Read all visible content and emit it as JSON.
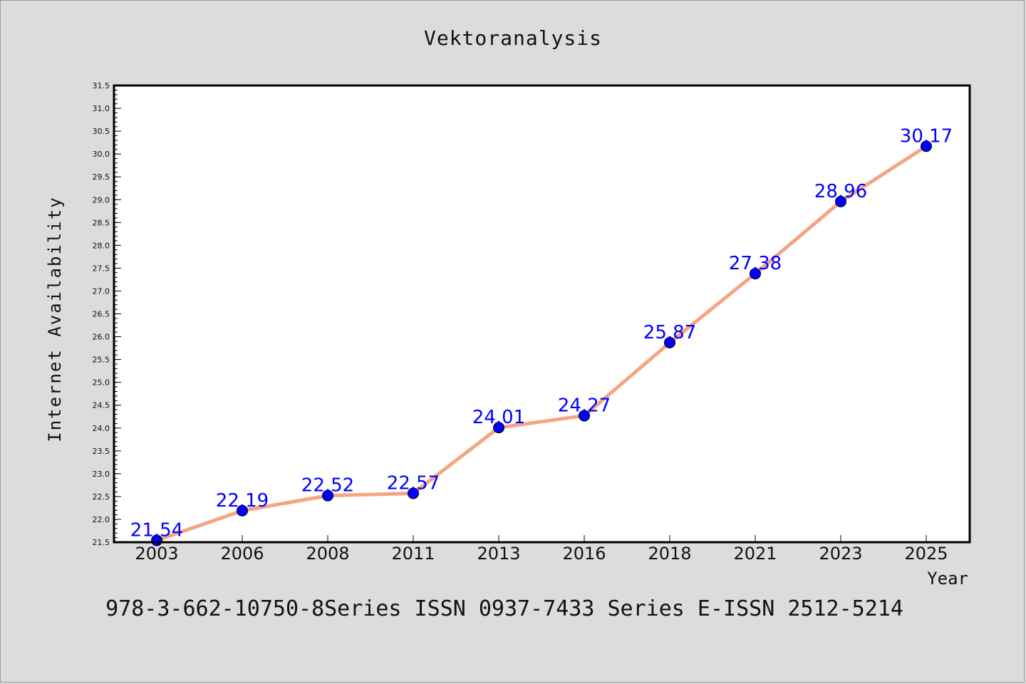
{
  "chart_data": {
    "type": "line",
    "title": "Vektoranalysis",
    "xlabel": "Year",
    "ylabel": "Internet Availability",
    "categories": [
      "2003",
      "2006",
      "2008",
      "2011",
      "2013",
      "2016",
      "2018",
      "2021",
      "2023",
      "2025"
    ],
    "series": [
      {
        "values": [
          21.54,
          22.19,
          22.52,
          22.57,
          24.01,
          24.27,
          25.87,
          27.38,
          28.96,
          30.17
        ],
        "labels": [
          "21.54",
          "22.19",
          "22.52",
          "22.57",
          "24.01",
          "24.27",
          "25.87",
          "27.38",
          "28.96",
          "30.17"
        ],
        "line_color": "#f4a582",
        "marker_color": "#0000ff",
        "label_color": "#0000ff"
      }
    ],
    "ylim": [
      21.5,
      31.5
    ],
    "yticks": [
      "21.5",
      "22.0",
      "22.5",
      "23.0",
      "23.5",
      "24.0",
      "24.5",
      "25.0",
      "25.5",
      "26.0",
      "26.5",
      "27.0",
      "27.5",
      "28.0",
      "28.5",
      "29.0",
      "29.5",
      "30.0",
      "30.5",
      "31.0",
      "31.5"
    ],
    "grid": false,
    "legend": "none"
  },
  "footer": "978-3-662-10750-8Series ISSN 0937-7433 Series E-ISSN 2512-5214",
  "colors": {
    "background": "#dcdcdc",
    "plot_background": "#ffffff",
    "axis": "#000000"
  }
}
